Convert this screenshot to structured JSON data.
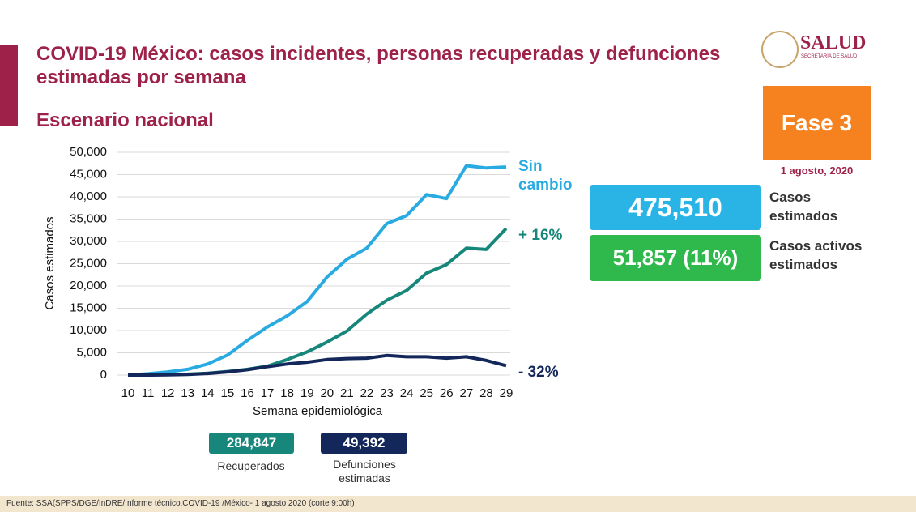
{
  "chart_data": {
    "type": "line",
    "y_label": "Casos estimados",
    "x_label": "Semana epidemiológica",
    "categories": [
      "10",
      "11",
      "12",
      "13",
      "14",
      "15",
      "16",
      "17",
      "18",
      "19",
      "20",
      "21",
      "22",
      "23",
      "24",
      "25",
      "26",
      "27",
      "28",
      "29"
    ],
    "series": [
      {
        "name": "Sin cambio",
        "color": "#29abe2",
        "values": [
          0,
          300,
          700,
          1300,
          2500,
          4500,
          7800,
          10800,
          13300,
          16500,
          22000,
          26000,
          28500,
          34000,
          35800,
          40500,
          39600,
          47000,
          46500,
          46700
        ]
      },
      {
        "name": "+ 16%",
        "color": "#17877b",
        "values": [
          0,
          0,
          100,
          200,
          400,
          800,
          1300,
          2000,
          3500,
          5200,
          7400,
          9900,
          13700,
          16800,
          19000,
          22900,
          24800,
          28500,
          28200,
          32900
        ]
      },
      {
        "name": "- 32%",
        "color": "#13275a",
        "values": [
          0,
          0,
          50,
          150,
          350,
          700,
          1200,
          1900,
          2500,
          2900,
          3500,
          3700,
          3800,
          4400,
          4100,
          4100,
          3800,
          4100,
          3300,
          2100
        ]
      }
    ],
    "ylim": [
      0,
      50000
    ],
    "yticks": [
      0,
      {
        "value": 5000,
        "label": "5,000"
      },
      {
        "value": 10000,
        "label": "10,000"
      },
      {
        "value": 15000,
        "label": "15,000"
      },
      {
        "value": 20000,
        "label": "20,000"
      },
      {
        "value": 25000,
        "label": "25,000"
      },
      {
        "value": 30000,
        "label": "30,000"
      },
      {
        "value": 35000,
        "label": "35,000"
      },
      {
        "value": 40000,
        "label": "40,000"
      },
      {
        "value": 45000,
        "label": "45,000"
      },
      {
        "value": 50000,
        "label": "50,000"
      }
    ],
    "grid": true
  },
  "slide": {
    "title": "COVID-19 México: casos incidentes, personas recuperadas y defunciones estimadas por semana",
    "subtitle": "Escenario nacional",
    "logo": "SALUD",
    "logo_sub": "SECRETARÍA DE SALUD",
    "phase": "Fase 3",
    "date": "1 agosto, 2020",
    "cases": {
      "value": "475,510",
      "label": "Casos estimados"
    },
    "active": {
      "value": "51,857 (11%)",
      "label": "Casos activos estimados"
    },
    "recovered": {
      "value": "284,847",
      "label": "Recuperados"
    },
    "deaths": {
      "value": "49,392",
      "label": "Defunciones estimadas"
    },
    "source": "Fuente: SSA(SPPS/DGE/InDRE/Informe técnico.COVID-19 /México- 1 agosto 2020 (corte 9:00h)"
  }
}
